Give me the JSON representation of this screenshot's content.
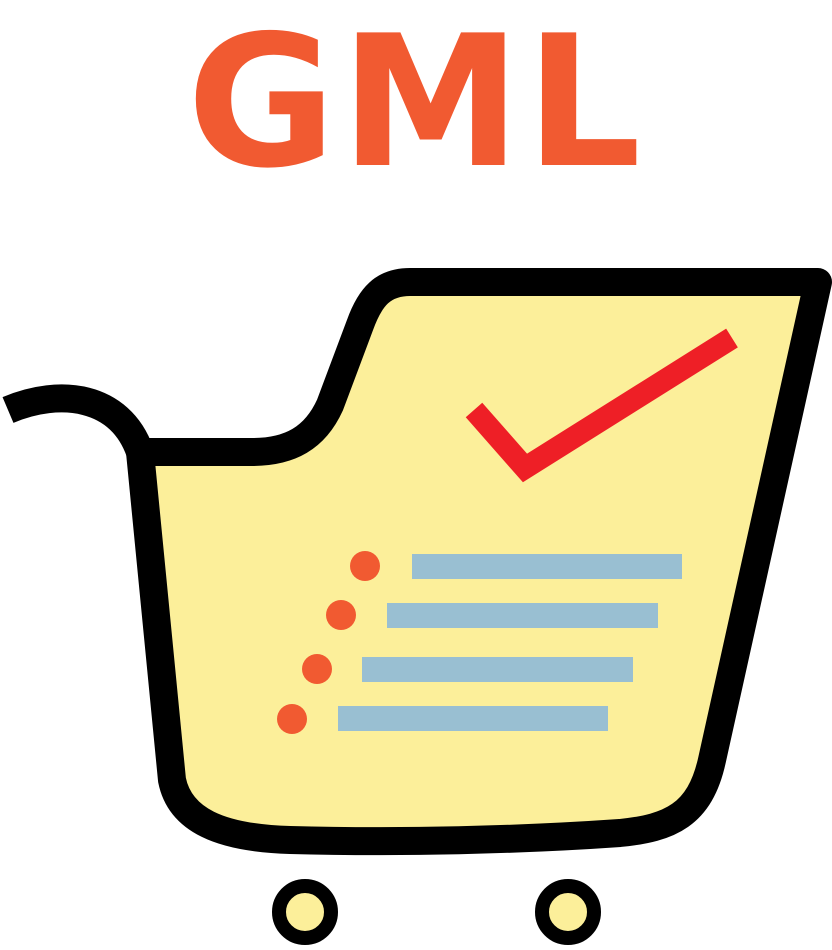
{
  "logo": {
    "title": "GML"
  },
  "icons": {
    "cart": "shopping-cart-icon",
    "checkmark": "checkmark-icon",
    "list": "list-icon"
  },
  "colors": {
    "title": "#f15a31",
    "cart_fill": "#fcef9a",
    "cart_outline": "#000000",
    "checkmark": "#ee1f26",
    "bullet": "#f15a31",
    "list_line": "#99bfd2",
    "wheel_fill": "#fcef9a"
  }
}
